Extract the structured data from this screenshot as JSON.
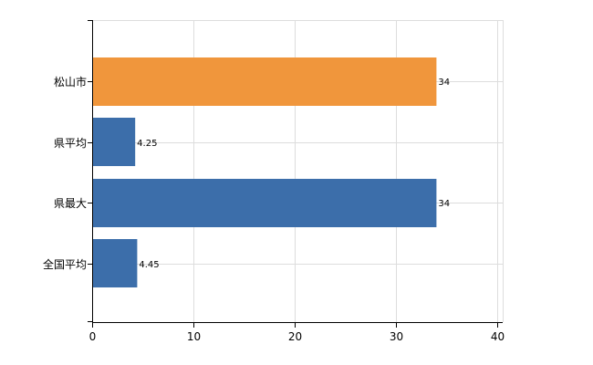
{
  "chart_data": {
    "type": "bar",
    "orientation": "horizontal",
    "categories": [
      "松山市",
      "県平均",
      "県最大",
      "全国平均"
    ],
    "values": [
      34,
      4.25,
      34,
      4.45
    ],
    "data_labels": [
      "34",
      "4.25",
      "34",
      "4.45"
    ],
    "bar_colors": [
      "#f0963c",
      "#3c6eaa",
      "#3c6eaa",
      "#3c6eaa"
    ],
    "xlim": [
      0,
      40
    ],
    "x_ticks": [
      0,
      10,
      20,
      30,
      40
    ],
    "x_tick_labels": [
      "0",
      "10",
      "20",
      "30",
      "40"
    ],
    "grid": true,
    "legend": "none"
  }
}
